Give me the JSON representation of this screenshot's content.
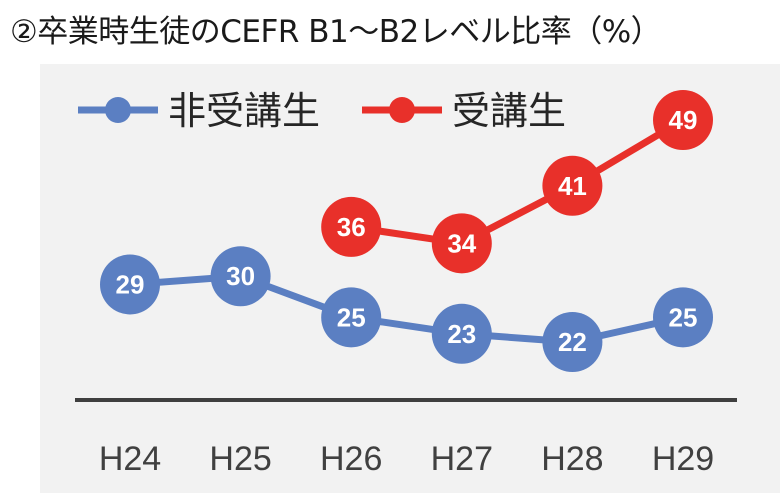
{
  "title": "②卒業時生徒のCEFR B1～B2レベル比率（%）",
  "chart_data": {
    "type": "line",
    "title": "②卒業時生徒のCEFR B1～B2レベル比率（%）",
    "categories": [
      "H24",
      "H25",
      "H26",
      "H27",
      "H28",
      "H29"
    ],
    "series": [
      {
        "name": "非受講生",
        "color": "#5b7fc2",
        "values": [
          29,
          30,
          25,
          23,
          22,
          25
        ]
      },
      {
        "name": "受講生",
        "color": "#e8302a",
        "values": [
          null,
          null,
          36,
          34,
          41,
          49
        ]
      }
    ],
    "legend": "top-left",
    "data_labels": true,
    "grid": false,
    "background": "#f2f2f2"
  }
}
